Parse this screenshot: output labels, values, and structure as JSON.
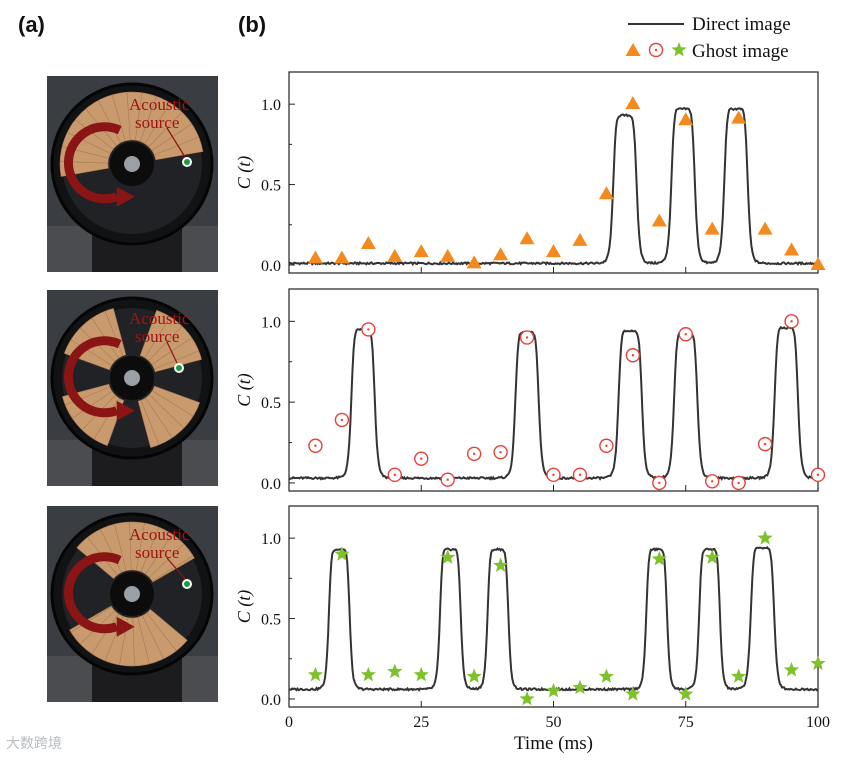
{
  "panel_labels": {
    "a": "(a)",
    "b": "(b)"
  },
  "photos": [
    {
      "label_line1": "Acoustic",
      "label_line2": "source",
      "sectors": [
        [
          170,
          350
        ]
      ]
    },
    {
      "label_line1": "Acoustic",
      "label_line2": "source",
      "sectors": [
        [
          200,
          255
        ],
        [
          290,
          345
        ],
        [
          20,
          75
        ],
        [
          110,
          165
        ]
      ]
    },
    {
      "label_line1": "Acoustic",
      "label_line2": "source",
      "sectors": [
        [
          220,
          330
        ],
        [
          40,
          150
        ]
      ]
    }
  ],
  "legend": {
    "direct_label": "Direct image",
    "ghost_label": "Ghost image"
  },
  "colors": {
    "direct_line": "#333333",
    "triangle": "#f28a1e",
    "circle": "#e8413a",
    "star": "#7dc12b",
    "wheel_sector": "#c99a6e",
    "arrow": "#8b1414"
  },
  "chart_data": [
    {
      "type": "line",
      "ylabel": "C (t)",
      "xlabel": "",
      "xlim": [
        0,
        100
      ],
      "ylim": [
        -0.05,
        1.2
      ],
      "yticks": [
        "0.0",
        "0.5",
        "1.0"
      ],
      "xticks": [
        "0",
        "25",
        "50",
        "75",
        "100"
      ],
      "show_xtick_labels": false,
      "marker": "triangle",
      "direct": {
        "baseline": 0.01,
        "pulses": [
          {
            "center": 63.5,
            "width": 4.5,
            "height": 0.93
          },
          {
            "center": 74.5,
            "width": 4.5,
            "height": 0.97
          },
          {
            "center": 84.5,
            "width": 4.5,
            "height": 0.97
          }
        ]
      },
      "ghost": {
        "x": [
          5,
          10,
          15,
          20,
          25,
          30,
          35,
          40,
          45,
          50,
          55,
          60,
          65,
          70,
          75,
          80,
          85,
          90,
          95,
          100
        ],
        "y": [
          0.04,
          0.04,
          0.13,
          0.05,
          0.08,
          0.05,
          0.01,
          0.06,
          0.16,
          0.08,
          0.15,
          0.44,
          1.0,
          0.27,
          0.9,
          0.22,
          0.91,
          0.22,
          0.09,
          0.0
        ]
      }
    },
    {
      "type": "line",
      "ylabel": "C (t)",
      "xlabel": "",
      "xlim": [
        0,
        100
      ],
      "ylim": [
        -0.05,
        1.2
      ],
      "yticks": [
        "0.0",
        "0.5",
        "1.0"
      ],
      "xticks": [
        "0",
        "25",
        "50",
        "75",
        "100"
      ],
      "show_xtick_labels": false,
      "marker": "circle",
      "direct": {
        "baseline": 0.03,
        "pulses": [
          {
            "center": 14.0,
            "width": 4.5,
            "height": 0.95
          },
          {
            "center": 45.0,
            "width": 4.5,
            "height": 0.93
          },
          {
            "center": 64.5,
            "width": 4.5,
            "height": 0.94
          },
          {
            "center": 75.0,
            "width": 4.5,
            "height": 0.93
          },
          {
            "center": 94.0,
            "width": 4.5,
            "height": 0.96
          }
        ]
      },
      "ghost": {
        "x": [
          5,
          10,
          15,
          20,
          25,
          30,
          35,
          40,
          45,
          50,
          55,
          60,
          65,
          70,
          75,
          80,
          85,
          90,
          95,
          100
        ],
        "y": [
          0.23,
          0.39,
          0.95,
          0.05,
          0.15,
          0.02,
          0.18,
          0.19,
          0.9,
          0.05,
          0.05,
          0.23,
          0.79,
          0.0,
          0.92,
          0.01,
          0.0,
          0.24,
          1.0,
          0.05
        ]
      }
    },
    {
      "type": "line",
      "ylabel": "C (t)",
      "xlabel": "Time (ms)",
      "xlim": [
        0,
        100
      ],
      "ylim": [
        -0.05,
        1.2
      ],
      "yticks": [
        "0.0",
        "0.5",
        "1.0"
      ],
      "xticks": [
        "0",
        "25",
        "50",
        "75",
        "100"
      ],
      "show_xtick_labels": true,
      "marker": "star",
      "direct": {
        "baseline": 0.06,
        "pulses": [
          {
            "center": 9.5,
            "width": 4.0,
            "height": 0.93
          },
          {
            "center": 30.5,
            "width": 4.0,
            "height": 0.93
          },
          {
            "center": 39.5,
            "width": 4.0,
            "height": 0.93
          },
          {
            "center": 69.5,
            "width": 4.0,
            "height": 0.93
          },
          {
            "center": 79.5,
            "width": 4.0,
            "height": 0.93
          },
          {
            "center": 89.5,
            "width": 4.5,
            "height": 0.94
          }
        ]
      },
      "ghost": {
        "x": [
          5,
          10,
          15,
          20,
          25,
          30,
          35,
          40,
          45,
          50,
          55,
          60,
          65,
          70,
          75,
          80,
          85,
          90,
          95,
          100
        ],
        "y": [
          0.15,
          0.9,
          0.15,
          0.17,
          0.15,
          0.88,
          0.14,
          0.83,
          0.0,
          0.05,
          0.07,
          0.14,
          0.03,
          0.87,
          0.03,
          0.88,
          0.14,
          1.0,
          0.18,
          0.22
        ]
      }
    }
  ],
  "watermark": "大数跨境"
}
